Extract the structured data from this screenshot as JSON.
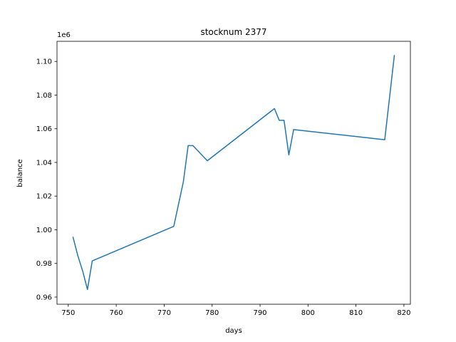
{
  "chart_data": {
    "type": "line",
    "title": "stocknum 2377",
    "xlabel": "days",
    "ylabel": "balance",
    "y_offset_label": "1e6",
    "xlim": [
      747.65,
      821.35
    ],
    "ylim": [
      0.95575,
      1.11195
    ],
    "x_ticks": [
      750,
      760,
      770,
      780,
      790,
      800,
      810,
      820
    ],
    "x_tick_labels": [
      "750",
      "760",
      "770",
      "780",
      "790",
      "800",
      "810",
      "820"
    ],
    "y_ticks": [
      0.96,
      0.98,
      1.0,
      1.02,
      1.04,
      1.06,
      1.08,
      1.1
    ],
    "y_tick_labels": [
      "0.96",
      "0.98",
      "1.00",
      "1.02",
      "1.04",
      "1.06",
      "1.08",
      "1.10"
    ],
    "grid": false,
    "series": [
      {
        "color": "#1f77b4",
        "x": [
          751,
          752,
          753,
          754,
          755,
          772,
          774,
          775,
          776,
          779,
          793,
          794,
          795,
          796,
          797,
          816,
          818
        ],
        "y": [
          0.9955,
          0.9845,
          0.9755,
          0.9645,
          0.9815,
          1.002,
          1.0285,
          1.05,
          1.05,
          1.041,
          1.072,
          1.065,
          1.065,
          1.0445,
          1.0595,
          1.0535,
          1.1035
        ]
      }
    ]
  }
}
